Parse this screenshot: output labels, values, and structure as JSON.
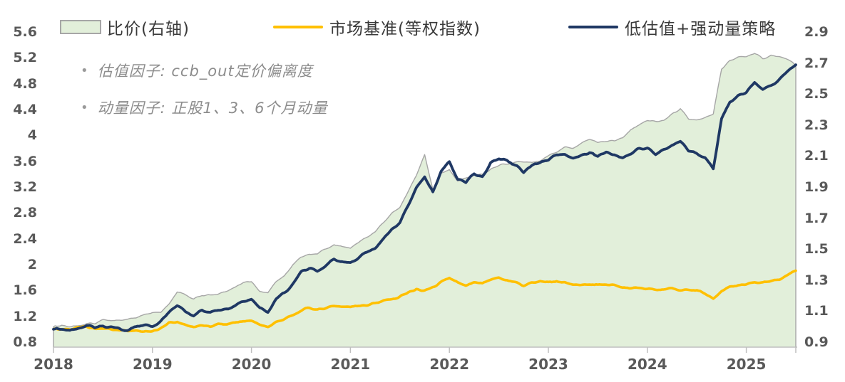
{
  "legend": [
    {
      "label": "比价(右轴)",
      "type": "area",
      "fill": "#e2efda",
      "border": "#a6a6a6"
    },
    {
      "label": "市场基准(等权指数)",
      "type": "line",
      "color": "#ffc000"
    },
    {
      "label": "低估值+强动量策略",
      "type": "line",
      "color": "#1f3864"
    }
  ],
  "annotations": [
    {
      "bullet": "•",
      "text": "估值因子: ccb_out定价偏离度"
    },
    {
      "bullet": "•",
      "text": "动量因子: 正股1、3、6个月动量"
    }
  ],
  "chart_data": {
    "type": "line",
    "x_interval": "monthly",
    "x_start": "2018-01",
    "x_end": "2025-07",
    "x_ticks": [
      "2018",
      "2019",
      "2020",
      "2021",
      "2022",
      "2023",
      "2024",
      "2025"
    ],
    "left_axis": {
      "min": 0.8,
      "max": 5.6,
      "step": 0.4,
      "ticks": [
        "5.6",
        "5.2",
        "4.8",
        "4.4",
        "4",
        "3.6",
        "3.2",
        "2.8",
        "2.4",
        "2",
        "1.6",
        "1.2",
        "0.8"
      ]
    },
    "right_axis": {
      "min": 0.9,
      "max": 2.9,
      "step": 0.2,
      "ticks": [
        "2.9",
        "2.7",
        "2.5",
        "2.3",
        "2.1",
        "1.9",
        "1.7",
        "1.5",
        "1.3",
        "1.1",
        "0.9"
      ]
    },
    "grid": false,
    "legend_position": "top",
    "series": [
      {
        "name": "比价(右轴)",
        "type": "area",
        "axis": "right",
        "fill": "#e2efda",
        "stroke": "#a6a6a6",
        "values": [
          1.0,
          1.01,
          1.0,
          1.01,
          1.02,
          1.02,
          1.04,
          1.04,
          1.04,
          1.04,
          1.06,
          1.08,
          1.09,
          1.09,
          1.15,
          1.22,
          1.2,
          1.18,
          1.21,
          1.2,
          1.21,
          1.23,
          1.25,
          1.29,
          1.29,
          1.23,
          1.22,
          1.29,
          1.33,
          1.4,
          1.45,
          1.47,
          1.47,
          1.5,
          1.53,
          1.52,
          1.51,
          1.54,
          1.58,
          1.61,
          1.67,
          1.73,
          1.77,
          1.87,
          1.98,
          2.11,
          1.88,
          1.99,
          2.01,
          1.94,
          1.96,
          1.98,
          1.98,
          2.02,
          2.04,
          2.05,
          2.06,
          2.06,
          2.06,
          2.07,
          2.1,
          2.13,
          2.16,
          2.15,
          2.18,
          2.21,
          2.19,
          2.2,
          2.2,
          2.22,
          2.27,
          2.3,
          2.33,
          2.32,
          2.33,
          2.37,
          2.41,
          2.34,
          2.33,
          2.35,
          2.37,
          2.66,
          2.72,
          2.74,
          2.74,
          2.76,
          2.73,
          2.75,
          2.74,
          2.72,
          2.69
        ]
      },
      {
        "name": "市场基准(等权指数)",
        "type": "line",
        "axis": "left",
        "color": "#ffc000",
        "values": [
          1.0,
          1.01,
          0.99,
          1.02,
          1.03,
          1.0,
          1.02,
          1.0,
          0.98,
          0.96,
          0.98,
          0.97,
          0.97,
          1.03,
          1.1,
          1.12,
          1.06,
          1.04,
          1.06,
          1.05,
          1.07,
          1.08,
          1.1,
          1.12,
          1.13,
          1.08,
          1.05,
          1.12,
          1.17,
          1.23,
          1.3,
          1.33,
          1.3,
          1.33,
          1.36,
          1.35,
          1.34,
          1.36,
          1.38,
          1.4,
          1.44,
          1.47,
          1.5,
          1.56,
          1.62,
          1.6,
          1.66,
          1.73,
          1.79,
          1.71,
          1.67,
          1.73,
          1.7,
          1.76,
          1.79,
          1.76,
          1.72,
          1.67,
          1.72,
          1.74,
          1.72,
          1.74,
          1.73,
          1.7,
          1.7,
          1.69,
          1.68,
          1.7,
          1.68,
          1.65,
          1.64,
          1.64,
          1.63,
          1.6,
          1.62,
          1.63,
          1.62,
          1.61,
          1.6,
          1.56,
          1.47,
          1.6,
          1.66,
          1.68,
          1.7,
          1.74,
          1.72,
          1.74,
          1.78,
          1.84,
          1.9
        ]
      },
      {
        "name": "低估值+强动量策略",
        "type": "line",
        "axis": "left",
        "color": "#1f3864",
        "values": [
          1.0,
          1.02,
          0.99,
          1.03,
          1.05,
          1.02,
          1.06,
          1.04,
          1.02,
          1.0,
          1.04,
          1.05,
          1.06,
          1.12,
          1.26,
          1.37,
          1.27,
          1.23,
          1.28,
          1.26,
          1.3,
          1.33,
          1.37,
          1.44,
          1.46,
          1.33,
          1.28,
          1.45,
          1.56,
          1.72,
          1.88,
          1.95,
          1.91,
          2.0,
          2.08,
          2.05,
          2.03,
          2.1,
          2.18,
          2.26,
          2.4,
          2.55,
          2.66,
          2.92,
          3.2,
          3.38,
          3.12,
          3.45,
          3.59,
          3.32,
          3.27,
          3.42,
          3.36,
          3.56,
          3.65,
          3.6,
          3.54,
          3.44,
          3.55,
          3.6,
          3.62,
          3.7,
          3.73,
          3.66,
          3.7,
          3.73,
          3.68,
          3.74,
          3.7,
          3.66,
          3.72,
          3.78,
          3.8,
          3.71,
          3.78,
          3.86,
          3.9,
          3.76,
          3.72,
          3.66,
          3.48,
          4.25,
          4.52,
          4.6,
          4.66,
          4.81,
          4.7,
          4.78,
          4.88,
          5.0,
          5.12
        ]
      }
    ]
  },
  "colors": {
    "axis_text": "#595959",
    "axis_line": "#bfbfbf",
    "annotation_text": "#8c8c8c",
    "area_fill": "#e2efda",
    "area_stroke": "#a6a6a6",
    "benchmark": "#ffc000",
    "strategy": "#1f3864"
  }
}
